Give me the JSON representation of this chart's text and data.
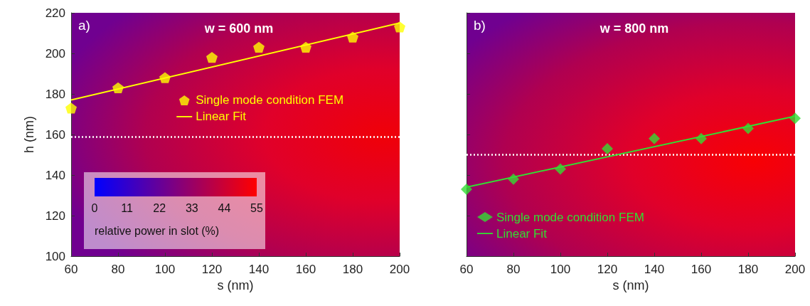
{
  "chart_data": [
    {
      "type": "scatter",
      "title": "w = 600 nm",
      "annotations": [
        "a)",
        "0",
        "11",
        "22",
        "33",
        "44",
        "55"
      ],
      "xlabel": "s (nm)",
      "ylabel": "h (nm)",
      "clabel": "relative power in slot (%)",
      "xlim": [
        60,
        200
      ],
      "xticks": [
        60,
        80,
        100,
        120,
        140,
        160,
        180,
        200
      ],
      "ylim": [
        100,
        220
      ],
      "yticks": [
        100,
        120,
        140,
        160,
        180,
        200,
        220
      ],
      "ref_lines": [
        {
          "axis": "y",
          "value": 159,
          "color": "#ffffff",
          "line_style": "dotted"
        }
      ],
      "legend": "right",
      "series": [
        {
          "name": "Single mode condition FEM",
          "type": "scatter",
          "color": "#ffff00",
          "x": [
            60,
            80,
            100,
            120,
            140,
            160,
            180,
            200
          ],
          "values": [
            173,
            183,
            188,
            198,
            203,
            203,
            208,
            213
          ]
        },
        {
          "name": "Linear Fit",
          "type": "line",
          "color": "#ffff00",
          "marker": "none",
          "x": [
            60,
            200
          ],
          "values": [
            177,
            215
          ]
        }
      ]
    },
    {
      "type": "scatter",
      "title": "w = 800 nm",
      "annotations": [
        "b)"
      ],
      "xlabel": "s (nm)",
      "tick_labels": "x",
      "xlim": [
        60,
        200
      ],
      "xticks": [
        60,
        80,
        100,
        120,
        140,
        160,
        180,
        200
      ],
      "ylim": [
        100,
        220
      ],
      "yticks": [
        100,
        120,
        140,
        160,
        180,
        200,
        220
      ],
      "ref_lines": [
        {
          "axis": "y",
          "value": 150,
          "color": "#ffffff",
          "line_style": "dotted"
        }
      ],
      "legend": "bottom left",
      "series": [
        {
          "name": "Single mode condition FEM",
          "type": "scatter",
          "color": "#33dd33",
          "marker": "diamond",
          "x": [
            60,
            80,
            100,
            120,
            140,
            160,
            180,
            200
          ],
          "values": [
            133,
            138,
            143,
            153,
            158,
            158,
            163,
            168
          ]
        },
        {
          "name": "Linear Fit",
          "type": "line",
          "color": "#33dd33",
          "marker": "none",
          "x": [
            60,
            200
          ],
          "values": [
            134,
            169
          ]
        }
      ]
    }
  ]
}
